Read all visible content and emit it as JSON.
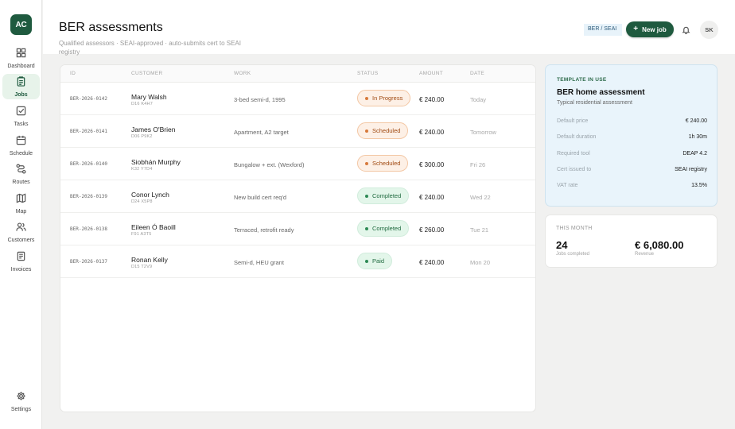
{
  "app": {
    "logo_text": "AC"
  },
  "sidebar": {
    "items": [
      {
        "label": "Dashboard",
        "icon": "grid-icon",
        "active": false
      },
      {
        "label": "Jobs",
        "icon": "clipboard-icon",
        "active": true
      },
      {
        "label": "Tasks",
        "icon": "checkbox-icon",
        "active": false
      },
      {
        "label": "Schedule",
        "icon": "calendar-icon",
        "active": false
      },
      {
        "label": "Routes",
        "icon": "route-icon",
        "active": false
      },
      {
        "label": "Map",
        "icon": "map-icon",
        "active": false
      },
      {
        "label": "Customers",
        "icon": "users-icon",
        "active": false
      },
      {
        "label": "Invoices",
        "icon": "invoice-icon",
        "active": false
      }
    ],
    "settings_label": "Settings"
  },
  "header": {
    "title": "BER assessments",
    "subtitle": "Qualified assessors · SEAI-approved · auto-submits cert to SEAI registry",
    "tag_chip": "BER / SEAI",
    "new_job_label": "New job",
    "new_job_icon": "plus",
    "avatar_initials": "SK"
  },
  "table": {
    "columns": [
      "ID",
      "CUSTOMER",
      "WORK",
      "STATUS",
      "AMOUNT",
      "DATE"
    ],
    "rows": [
      {
        "id": "BER-2026-0142",
        "customer": "Mary Walsh",
        "eircode": "D16 K4H7",
        "work": "3-bed semi-d, 1995",
        "status": "In Progress",
        "amount": "€ 240.00",
        "date": "Today"
      },
      {
        "id": "BER-2026-0141",
        "customer": "James O'Brien",
        "eircode": "D06 P9K2",
        "work": "Apartment, A2 target",
        "status": "Scheduled",
        "amount": "€ 240.00",
        "date": "Tomorrow"
      },
      {
        "id": "BER-2026-0140",
        "customer": "Siobhán Murphy",
        "eircode": "K32 Y7D4",
        "work": "Bungalow + ext. (Wexford)",
        "status": "Scheduled",
        "amount": "€ 300.00",
        "date": "Fri 26"
      },
      {
        "id": "BER-2026-0139",
        "customer": "Conor Lynch",
        "eircode": "D24 X5P8",
        "work": "New build cert req'd",
        "status": "Completed",
        "amount": "€ 240.00",
        "date": "Wed 22"
      },
      {
        "id": "BER-2026-0138",
        "customer": "Eileen Ó Baoill",
        "eircode": "F91 A3T5",
        "work": "Terraced, retrofit ready",
        "status": "Completed",
        "amount": "€ 260.00",
        "date": "Tue 21"
      },
      {
        "id": "BER-2026-0137",
        "customer": "Ronan Kelly",
        "eircode": "D15 T2V9",
        "work": "Semi-d, HEU grant",
        "status": "Paid",
        "amount": "€ 240.00",
        "date": "Mon 20"
      }
    ]
  },
  "template": {
    "label": "TEMPLATE IN USE",
    "title": "BER home assessment",
    "subtitle": "Typical residential assessment",
    "rows": [
      {
        "key": "Default price",
        "value": "€ 240.00"
      },
      {
        "key": "Default duration",
        "value": "1h 30m"
      },
      {
        "key": "Required tool",
        "value": "DEAP 4.2"
      },
      {
        "key": "Cert issued to",
        "value": "SEAI registry"
      },
      {
        "key": "VAT rate",
        "value": "13.5%"
      }
    ]
  },
  "month": {
    "label": "THIS MONTH",
    "jobs_value": "24",
    "jobs_label": "Jobs completed",
    "revenue_value": "€ 6,080.00",
    "revenue_label": "Revenue"
  },
  "colors": {
    "brand": "#1f5a3f",
    "status_orange": "#d77a3c",
    "status_green": "#2e8a55",
    "template_bg": "#e9f4fb"
  }
}
